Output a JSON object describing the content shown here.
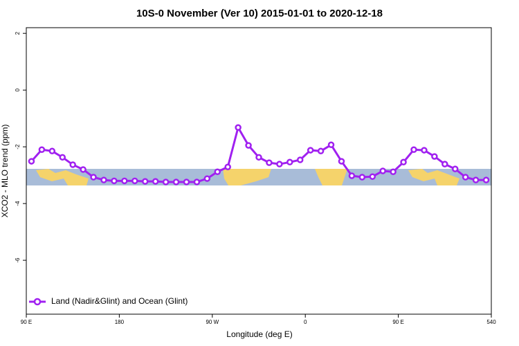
{
  "chart_data": {
    "type": "line",
    "title": "10S-0 November (Ver 10)   2015-01-01 to 2020-12-18",
    "x_label": "Longitude (deg E)",
    "y_label": "XCO2 - MLO trend (ppm)",
    "x": [
      95,
      105,
      115,
      125,
      135,
      145,
      155,
      165,
      175,
      185,
      195,
      205,
      215,
      225,
      235,
      245,
      255,
      265,
      275,
      285,
      295,
      305,
      315,
      325,
      335,
      345,
      355,
      365,
      375,
      385,
      395,
      405,
      415,
      425,
      435,
      445,
      455,
      465,
      475,
      485,
      495,
      505,
      515,
      525,
      535
    ],
    "series": [
      {
        "name": "Land (Nadir&Glint) and Ocean (Glint)",
        "color": "#a020f0",
        "values": [
          -2.51,
          -2.1,
          -2.15,
          -2.37,
          -2.63,
          -2.8,
          -3.07,
          -3.17,
          -3.2,
          -3.2,
          -3.2,
          -3.22,
          -3.22,
          -3.24,
          -3.24,
          -3.24,
          -3.24,
          -3.12,
          -2.88,
          -2.71,
          -1.32,
          -1.95,
          -2.37,
          -2.56,
          -2.61,
          -2.54,
          -2.46,
          -2.12,
          -2.15,
          -1.93,
          -2.51,
          -3.02,
          -3.07,
          -3.05,
          -2.85,
          -2.88,
          -2.54,
          -2.1,
          -2.12,
          -2.34,
          -2.61,
          -2.78,
          -3.07,
          -3.17,
          -3.17
        ]
      }
    ],
    "xlim": [
      90,
      540
    ],
    "xticks": [
      {
        "value": 90,
        "label": "90 E"
      },
      180,
      {
        "value": 270,
        "label": "90 W"
      },
      {
        "value": 360,
        "label": "0"
      },
      {
        "value": 450,
        "label": "90 E"
      },
      540
    ],
    "ylim": [
      -7.9,
      2.2
    ],
    "yticks": [
      -6,
      -4,
      -2,
      0,
      2
    ],
    "legend": "bottom-left"
  }
}
